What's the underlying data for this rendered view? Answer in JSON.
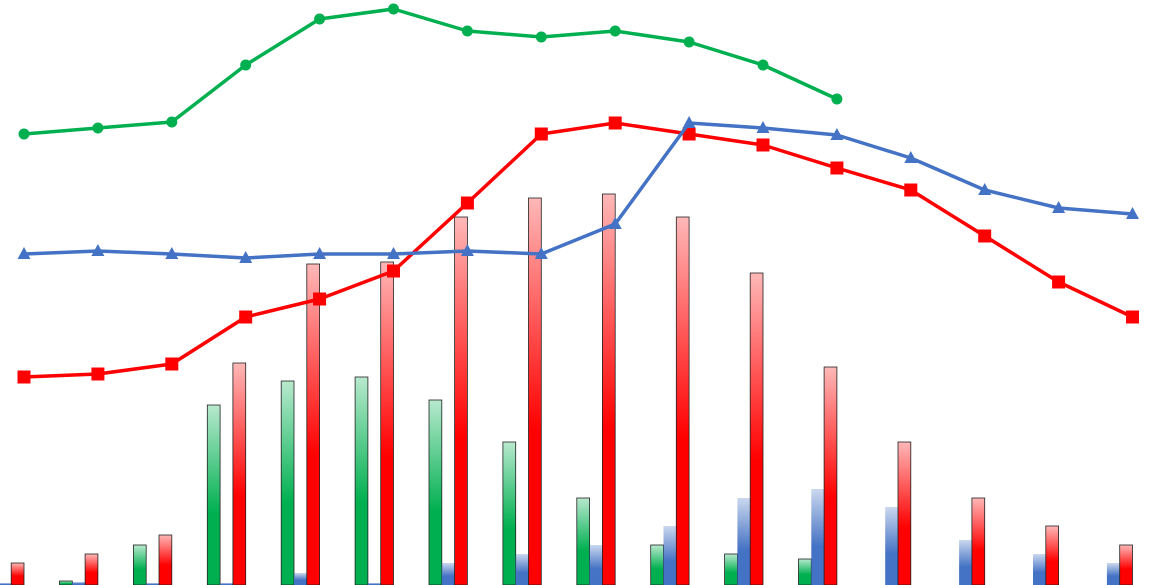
{
  "chart_data": {
    "type": "bar",
    "categories": [
      null,
      null,
      null,
      null,
      null,
      null,
      null,
      null,
      null,
      null,
      null,
      null,
      null,
      null,
      null,
      null
    ],
    "ylim": [
      0,
      585
    ],
    "series": [
      {
        "type": "bar",
        "color": "#00b050",
        "values": [
          null,
          4,
          40,
          180,
          204,
          208,
          185,
          143,
          87,
          40,
          31,
          26,
          null,
          null,
          null,
          null
        ]
      },
      {
        "type": "bar",
        "color": "#4472c4",
        "values": [
          2,
          3,
          2,
          2,
          12,
          2,
          22,
          31,
          40,
          59,
          87,
          96,
          78,
          45,
          31,
          22
        ]
      },
      {
        "type": "bar",
        "color": "#ff0000",
        "values": [
          22,
          31,
          50,
          222,
          321,
          323,
          368,
          387,
          391,
          368,
          312,
          218,
          143,
          87,
          59,
          40
        ]
      },
      {
        "type": "line",
        "color": "#00b050",
        "marker": "circle",
        "values": [
          451,
          457,
          463,
          520,
          566,
          576,
          554,
          548,
          554,
          543,
          520,
          486,
          null,
          null,
          null,
          null
        ]
      },
      {
        "type": "line",
        "color": "#ff0000",
        "marker": "square",
        "values": [
          208,
          211,
          221,
          268,
          286,
          314,
          382,
          451,
          462,
          451,
          440,
          417,
          395,
          349,
          303,
          268
        ]
      },
      {
        "type": "line",
        "color": "#4472c4",
        "marker": "triangle",
        "values": [
          331,
          334,
          331,
          327,
          331,
          331,
          334,
          331,
          361,
          462,
          457,
          450,
          427,
          395,
          377,
          371
        ]
      }
    ]
  }
}
